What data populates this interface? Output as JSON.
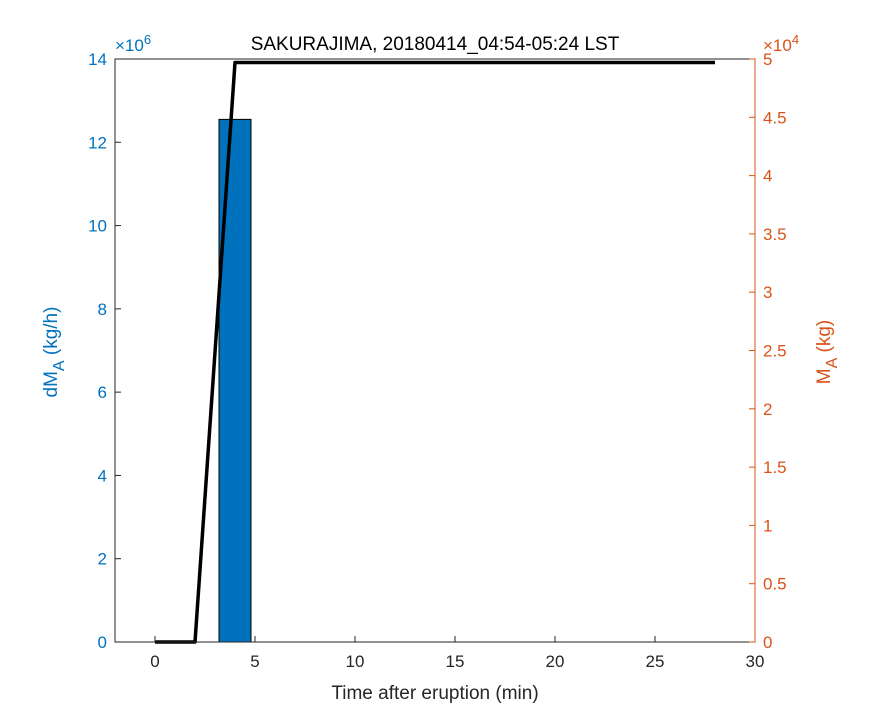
{
  "chart_data": {
    "type": "bar",
    "title": "SAKURAJIMA, 20180414_04:54-05:24 LST",
    "xlabel": "Time after eruption (min)",
    "xlim": [
      -2,
      30
    ],
    "x_ticks": [
      0,
      5,
      10,
      15,
      20,
      25,
      30
    ],
    "y_left": {
      "label_main": "dM",
      "label_sub": "A",
      "label_units": " (kg/h)",
      "lim": [
        0,
        14
      ],
      "ticks": [
        0,
        2,
        4,
        6,
        8,
        10,
        12,
        14
      ],
      "exponent_base": "×10",
      "exponent_power": "6",
      "color": "#0072BD"
    },
    "y_right": {
      "label_main": "M",
      "label_sub": "A",
      "label_units": " (kg)",
      "lim": [
        0,
        5
      ],
      "ticks": [
        "0",
        "0.5",
        "1",
        "1.5",
        "2",
        "2.5",
        "3",
        "3.5",
        "4",
        "4.5",
        "5"
      ],
      "exponent_base": "×10",
      "exponent_power": "4",
      "color": "#D95319"
    },
    "bars": {
      "color": "#0072BD",
      "data": [
        {
          "x": 4,
          "width": 1.6,
          "value": 12.55
        }
      ]
    },
    "line": {
      "color": "#000000",
      "axis": "right",
      "points": [
        [
          0,
          0
        ],
        [
          2,
          0
        ],
        [
          4,
          4.97
        ],
        [
          28,
          4.97
        ]
      ]
    },
    "grid": false,
    "legend": "none"
  }
}
